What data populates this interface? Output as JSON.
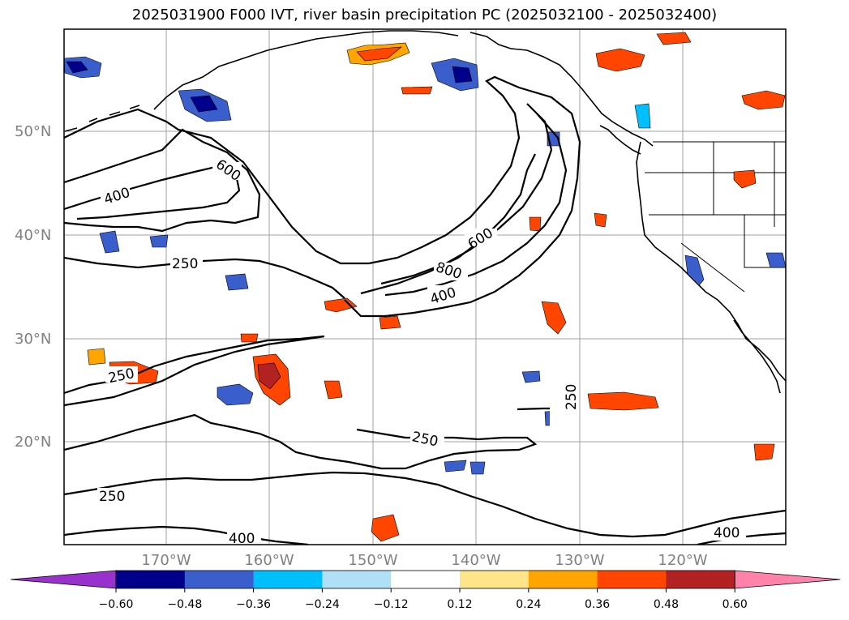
{
  "title": "2025031900 F000 IVT, river basin precipitation PC (2025032100 - 2025032400)",
  "lat_labels": [
    "50°N",
    "40°N",
    "30°N",
    "20°N"
  ],
  "lon_labels": [
    "170°W",
    "160°W",
    "150°W",
    "140°W",
    "130°W",
    "120°W"
  ],
  "colorbar": {
    "ticks": [
      "−0.60",
      "−0.48",
      "−0.36",
      "−0.24",
      "−0.12",
      "0.12",
      "0.24",
      "0.36",
      "0.48",
      "0.60"
    ],
    "colors": [
      "#9932cc",
      "#00008b",
      "#3a5fcd",
      "#00bfff",
      "#b0e0f8",
      "#ffffff",
      "#ffe58a",
      "#ffa500",
      "#ff4500",
      "#b22222",
      "#ff82ab"
    ]
  },
  "ivt_contour_labels": {
    "l400a": "400",
    "l600a": "600",
    "l250a": "250",
    "l600b": "600",
    "l800": "800",
    "l400b": "400",
    "l250b": "250",
    "l250c": "250",
    "l250d": "250",
    "l250e": "250",
    "l400c": "400",
    "l400d": "400"
  }
}
